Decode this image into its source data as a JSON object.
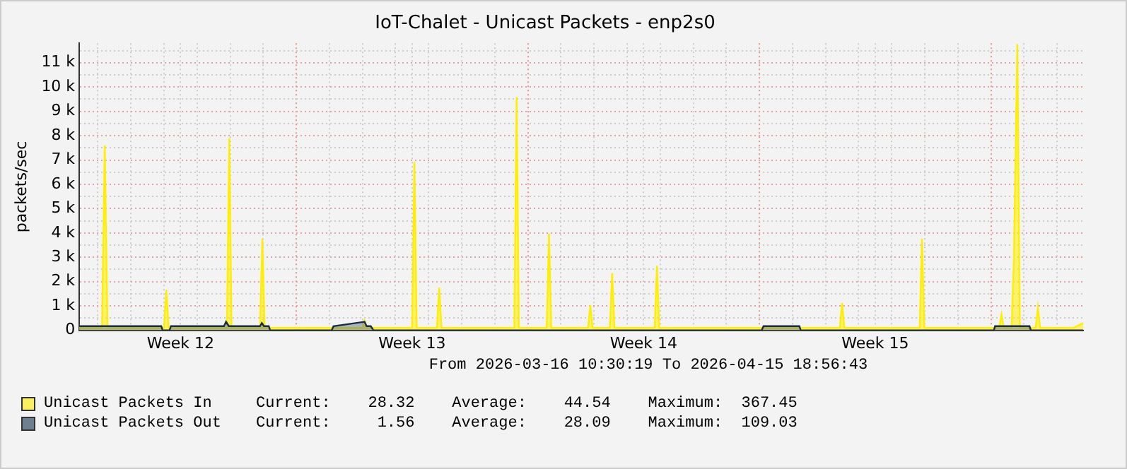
{
  "chart_data": {
    "type": "area",
    "title": "IoT-Chalet - Unicast Packets - enp2s0",
    "ylabel": "packets/sec",
    "xlim": [
      "2026-03-16T10:30",
      "2026-04-15T18:56"
    ],
    "xticks": [
      {
        "value": "2026-03-17",
        "label": null
      },
      {
        "value": "2026-03-18",
        "label": null
      },
      {
        "value": "2026-03-19",
        "label": null
      },
      {
        "value": "2026-03-19T12:00",
        "label": "Week 12"
      },
      {
        "value": "2026-03-20",
        "label": null
      },
      {
        "value": "2026-03-21",
        "label": null
      },
      {
        "value": "2026-03-22",
        "label": null
      },
      {
        "value": "2026-03-23",
        "label": null
      },
      {
        "value": "2026-03-24",
        "label": null
      },
      {
        "value": "2026-03-25",
        "label": null
      },
      {
        "value": "2026-03-26",
        "label": null
      },
      {
        "value": "2026-03-26T12:00",
        "label": "Week 13"
      },
      {
        "value": "2026-03-27",
        "label": null
      },
      {
        "value": "2026-03-28",
        "label": null
      },
      {
        "value": "2026-03-29",
        "label": null
      },
      {
        "value": "2026-03-30",
        "label": null
      },
      {
        "value": "2026-03-31",
        "label": null
      },
      {
        "value": "2026-04-01",
        "label": null
      },
      {
        "value": "2026-04-02",
        "label": null
      },
      {
        "value": "2026-04-02T12:00",
        "label": "Week 14"
      },
      {
        "value": "2026-04-03",
        "label": null
      },
      {
        "value": "2026-04-04",
        "label": null
      },
      {
        "value": "2026-04-05",
        "label": null
      },
      {
        "value": "2026-04-06",
        "label": null
      },
      {
        "value": "2026-04-07",
        "label": null
      },
      {
        "value": "2026-04-08",
        "label": null
      },
      {
        "value": "2026-04-09",
        "label": null
      },
      {
        "value": "2026-04-09T12:00",
        "label": "Week 15"
      },
      {
        "value": "2026-04-10",
        "label": null
      },
      {
        "value": "2026-04-11",
        "label": null
      },
      {
        "value": "2026-04-12",
        "label": null
      },
      {
        "value": "2026-04-13",
        "label": null
      },
      {
        "value": "2026-04-14",
        "label": null
      },
      {
        "value": "2026-04-15",
        "label": null
      }
    ],
    "ylim": [
      0,
      11800
    ],
    "yticks": [
      0,
      {
        "value": 500,
        "label": null
      },
      {
        "value": 1000,
        "label": "1 k"
      },
      {
        "value": 1500,
        "label": null
      },
      {
        "value": 2000,
        "label": "2 k"
      },
      {
        "value": 2500,
        "label": null
      },
      {
        "value": 3000,
        "label": "3 k"
      },
      {
        "value": 3500,
        "label": null
      },
      {
        "value": 4000,
        "label": "4 k"
      },
      {
        "value": 4500,
        "label": null
      },
      {
        "value": 5000,
        "label": "5 k"
      },
      {
        "value": 5500,
        "label": null
      },
      {
        "value": 6000,
        "label": "6 k"
      },
      {
        "value": 6500,
        "label": null
      },
      {
        "value": 7000,
        "label": "7 k"
      },
      {
        "value": 7500,
        "label": null
      },
      {
        "value": 8000,
        "label": "8 k"
      },
      {
        "value": 8500,
        "label": null
      },
      {
        "value": 9000,
        "label": "9 k"
      },
      {
        "value": 9500,
        "label": null
      },
      {
        "value": 10000,
        "label": "10 k"
      },
      {
        "value": 10500,
        "label": null
      },
      {
        "value": 11000,
        "label": "11 k"
      },
      {
        "value": 11500,
        "label": null
      }
    ],
    "grid": true,
    "legend": "bottom",
    "series": [
      {
        "name": "Unicast Packets In",
        "color": "#ffee00",
        "x": [
          "2026-03-16T10:30",
          "2026-03-17T03:00",
          "2026-03-17T05:00",
          "2026-03-17T07:00",
          "2026-03-19T00:00",
          "2026-03-19T01:40",
          "2026-03-19T03:20",
          "2026-03-20T21:40",
          "2026-03-20T23:20",
          "2026-03-21T01:00",
          "2026-03-21T21:40",
          "2026-03-21T23:20",
          "2026-03-22T01:00",
          "2026-03-25T00:00",
          "2026-03-25T01:30",
          "2026-03-25T03:00",
          "2026-03-26T12:00",
          "2026-03-26T13:40",
          "2026-03-26T15:20",
          "2026-03-27T06:00",
          "2026-03-27T07:40",
          "2026-03-27T09:20",
          "2026-03-29T14:10",
          "2026-03-29T15:50",
          "2026-03-29T17:30",
          "2026-03-30T13:40",
          "2026-03-30T15:20",
          "2026-03-30T17:00",
          "2026-03-31T19:40",
          "2026-03-31T21:20",
          "2026-03-31T23:00",
          "2026-04-01T11:30",
          "2026-04-01T13:10",
          "2026-04-01T14:50",
          "2026-04-02T20:00",
          "2026-04-02T21:40",
          "2026-04-02T23:20",
          "2026-04-08T10:20",
          "2026-04-08T12:00",
          "2026-04-08T13:40",
          "2026-04-10T20:20",
          "2026-04-10T22:00",
          "2026-04-10T23:40",
          "2026-04-13T06:00",
          "2026-04-13T07:40",
          "2026-04-13T09:20",
          "2026-04-13T15:00",
          "2026-04-13T16:40",
          "2026-04-13T19:10",
          "2026-04-13T21:00",
          "2026-04-14T08:30",
          "2026-04-14T10:05",
          "2026-04-14T11:40",
          "2026-04-15T12:00",
          "2026-04-15T18:56"
        ],
        "values": [
          100,
          100,
          7600,
          100,
          100,
          1660,
          100,
          100,
          7900,
          100,
          100,
          3760,
          100,
          100,
          400,
          100,
          100,
          6920,
          100,
          100,
          1760,
          100,
          100,
          9590,
          100,
          100,
          3980,
          100,
          100,
          1040,
          100,
          100,
          2350,
          100,
          100,
          2650,
          100,
          100,
          1120,
          100,
          100,
          3760,
          100,
          100,
          650,
          100,
          100,
          2900,
          11760,
          100,
          100,
          940,
          100,
          100,
          300
        ]
      },
      {
        "name": "Unicast Packets Out",
        "color": "#6e7f8f",
        "x": [
          "2026-03-16T10:30",
          "2026-03-18T22:00",
          "2026-03-18T23:00",
          "2026-03-19T04:00",
          "2026-03-19T05:00",
          "2026-03-20T19:30",
          "2026-03-20T21:00",
          "2026-03-20T23:00",
          "2026-03-21T21:40",
          "2026-03-21T23:00",
          "2026-03-22T00:30",
          "2026-03-22T04:00",
          "2026-03-22T05:00",
          "2026-03-24T01:40",
          "2026-03-24T03:00",
          "2026-03-25T01:30",
          "2026-03-25T03:00",
          "2026-03-25T06:00",
          "2026-03-25T08:00",
          "2026-04-06T01:40",
          "2026-04-06T03:00",
          "2026-04-07T05:00",
          "2026-04-07T06:00",
          "2026-04-13T02:10",
          "2026-04-13T03:00",
          "2026-04-14T04:00",
          "2026-04-14T05:00",
          "2026-04-15T18:56"
        ],
        "values": [
          170,
          170,
          0,
          0,
          170,
          170,
          350,
          170,
          170,
          300,
          170,
          170,
          0,
          0,
          170,
          350,
          170,
          170,
          0,
          0,
          170,
          170,
          0,
          0,
          170,
          170,
          0,
          0
        ]
      }
    ],
    "annotations": [
      "From 2026-03-16 10:30:19 To 2026-04-15 18:56:43",
      "Current:    28.32    Average:    44.54    Maximum:  367.45",
      "Current:     1.56    Average:    28.09    Maximum:  109.03"
    ]
  }
}
